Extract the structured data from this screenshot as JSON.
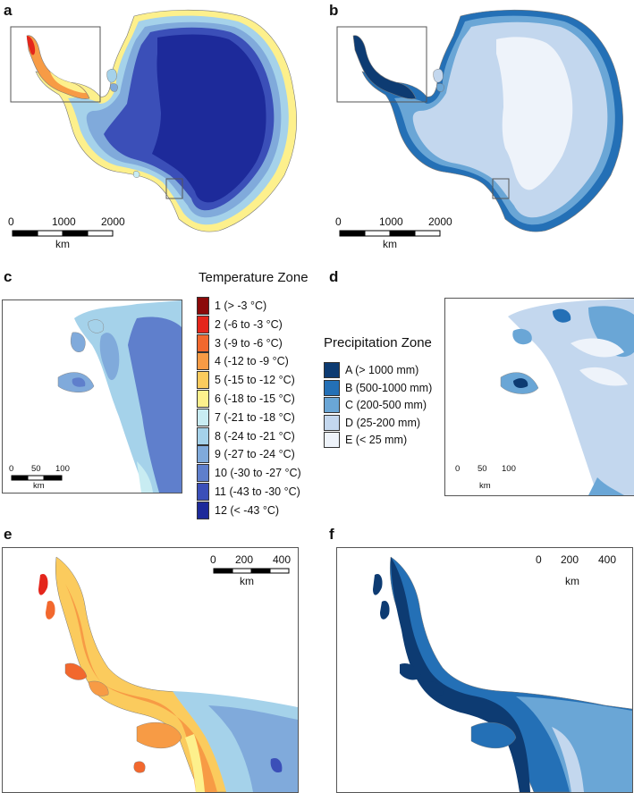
{
  "panels": {
    "a": "a",
    "b": "b",
    "c": "c",
    "d": "d",
    "e": "e",
    "f": "f"
  },
  "temperature_legend": {
    "title": "Temperature Zone",
    "items": [
      {
        "label": "1 (> -3 °C)",
        "color": "#8b0a0a"
      },
      {
        "label": "2 (-6 to -3 °C)",
        "color": "#e4261c"
      },
      {
        "label": "3 (-9 to -6 °C)",
        "color": "#f2682e"
      },
      {
        "label": "4 (-12 to -9 °C)",
        "color": "#f79b45"
      },
      {
        "label": "5 (-15 to -12 °C)",
        "color": "#fbcb5d"
      },
      {
        "label": "6 (-18 to -15 °C)",
        "color": "#fdf08c"
      },
      {
        "label": "7 (-21 to -18 °C)",
        "color": "#c8ecf2"
      },
      {
        "label": "8 (-24 to -21 °C)",
        "color": "#a5d2ea"
      },
      {
        "label": "9 (-27 to -24 °C)",
        "color": "#80aadb"
      },
      {
        "label": "10 (-30 to -27 °C)",
        "color": "#5f7fcc"
      },
      {
        "label": "11 (-43 to -30 °C)",
        "color": "#3b4fb8"
      },
      {
        "label": "12 (< -43 °C)",
        "color": "#1d2a9a"
      }
    ]
  },
  "precipitation_legend": {
    "title": "Precipitation Zone",
    "items": [
      {
        "label": "A (> 1000 mm)",
        "color": "#0d3b72"
      },
      {
        "label": "B (500-1000 mm)",
        "color": "#2470b6"
      },
      {
        "label": "C (200-500 mm)",
        "color": "#6aa6d6"
      },
      {
        "label": "D (25-200 mm)",
        "color": "#c3d7ee"
      },
      {
        "label": "E (< 25 mm)",
        "color": "#eef3fa"
      }
    ]
  },
  "scalebars": {
    "continent": {
      "ticks": [
        "0",
        "1000",
        "2000"
      ],
      "unit": "km"
    },
    "inset": {
      "ticks": [
        "0",
        "50",
        "100"
      ],
      "unit": "km"
    },
    "peninsula": {
      "ticks": [
        "0",
        "200",
        "400"
      ],
      "unit": "km"
    }
  }
}
